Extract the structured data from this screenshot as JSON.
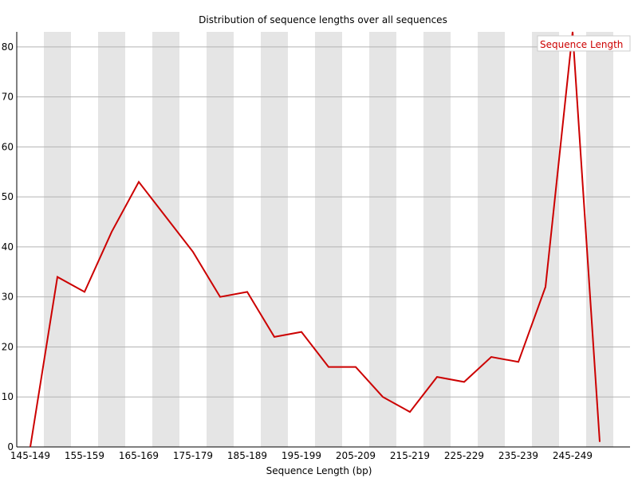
{
  "chart_data": {
    "type": "line",
    "title": "Distribution of sequence lengths over all sequences",
    "xlabel": "Sequence Length (bp)",
    "ylabel": "",
    "ylim": [
      0,
      83
    ],
    "yticks": [
      0,
      10,
      20,
      30,
      40,
      50,
      60,
      70,
      80
    ],
    "x": [
      "145-149",
      "150-154",
      "155-159",
      "160-164",
      "165-169",
      "170-174",
      "175-179",
      "180-184",
      "185-189",
      "190-194",
      "195-199",
      "200-204",
      "205-209",
      "210-214",
      "215-219",
      "220-224",
      "225-229",
      "230-234",
      "235-239",
      "240-244",
      "245-249",
      "250-254"
    ],
    "xtick_labels": [
      "145-149",
      "155-159",
      "165-169",
      "175-179",
      "185-189",
      "195-199",
      "205-209",
      "215-219",
      "225-229",
      "235-239",
      "245-249"
    ],
    "series": [
      {
        "name": "Sequence Length",
        "color": "#cc0000",
        "values": [
          0,
          34,
          31,
          43,
          53,
          46,
          39,
          30,
          31,
          22,
          23,
          16,
          16,
          10,
          7,
          14,
          13,
          18,
          17,
          32,
          83,
          1
        ]
      }
    ],
    "grid": true,
    "alternating_column_shading": true,
    "shade_color": "#e5e5e5",
    "legend": "top-right"
  }
}
